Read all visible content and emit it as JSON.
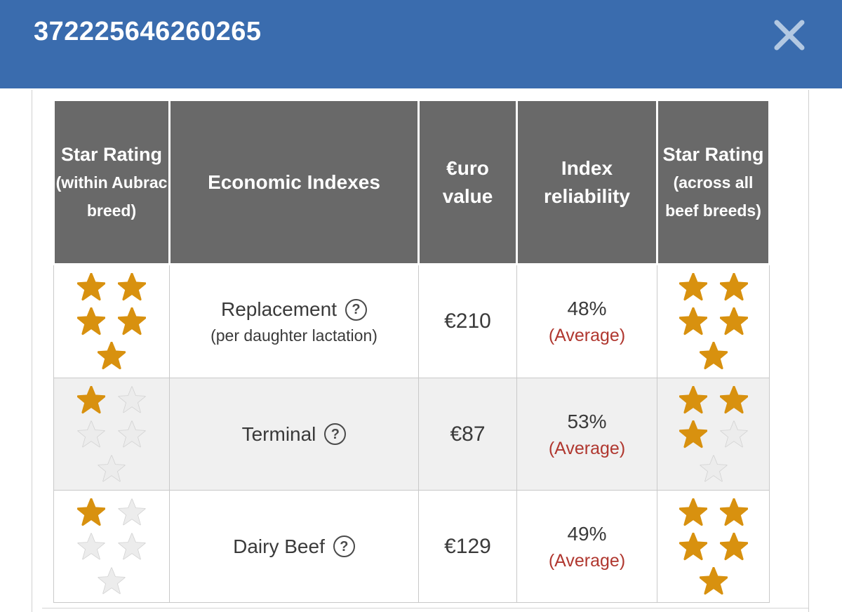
{
  "modal": {
    "title": "372225646260265",
    "close_icon": "x-close"
  },
  "table": {
    "columns": {
      "star_within": {
        "main": "Star Rating",
        "sub": "(within Aubrac breed)"
      },
      "economic": "Economic Indexes",
      "euro": "€uro value",
      "reliability": "Index reliability",
      "star_across": {
        "main": "Star Rating",
        "sub": "(across all beef breeds)"
      }
    },
    "help_glyph": "?",
    "rows": [
      {
        "index_name": "Replacement",
        "index_note": "(per daughter lactation)",
        "euro_value": "€210",
        "reliability_pct": "48%",
        "reliability_label": "(Average)",
        "stars_within_breed": 5,
        "stars_across_breeds": 5
      },
      {
        "index_name": "Terminal",
        "index_note": "",
        "euro_value": "€87",
        "reliability_pct": "53%",
        "reliability_label": "(Average)",
        "stars_within_breed": 1,
        "stars_across_breeds": 3
      },
      {
        "index_name": "Dairy Beef",
        "index_note": "",
        "euro_value": "€129",
        "reliability_pct": "49%",
        "reliability_label": "(Average)",
        "stars_within_breed": 1,
        "stars_across_breeds": 5
      }
    ],
    "stars_max": 5
  },
  "colors": {
    "header_blue": "#3a6cae",
    "header_gray": "#696969",
    "star_gold": "#d8910f",
    "star_gray": "#ececec",
    "reliability_red": "#b0372f",
    "row_alt": "#f0f0f0"
  }
}
